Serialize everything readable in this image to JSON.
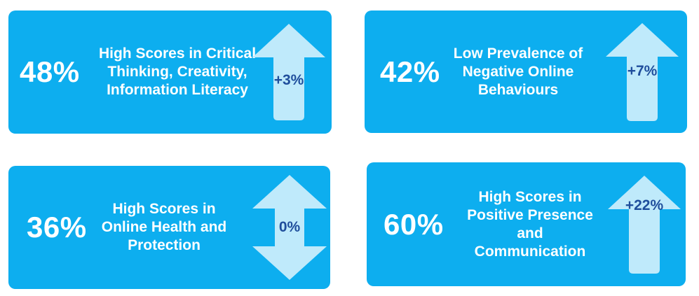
{
  "colors": {
    "card_background": "#0daeef",
    "arrow_fill": "#bfeafb",
    "delta_text": "#1f4e9c",
    "text": "#ffffff"
  },
  "cards": [
    {
      "percent": "48%",
      "description": "High Scores in Critical\nThinking, Creativity,\nInformation Literacy",
      "delta": "+3%",
      "arrow_icon": "up-arrow-icon"
    },
    {
      "percent": "42%",
      "description": "Low Prevalence of\nNegative Online\nBehaviours",
      "delta": "+7%",
      "arrow_icon": "up-arrow-icon"
    },
    {
      "percent": "36%",
      "description": "High Scores in\nOnline Health and\nProtection",
      "delta": "0%",
      "arrow_icon": "up-down-arrow-icon"
    },
    {
      "percent": "60%",
      "description": "High Scores in\nPositive Presence\nand\nCommunication",
      "delta": "+22%",
      "arrow_icon": "up-arrow-icon"
    }
  ]
}
